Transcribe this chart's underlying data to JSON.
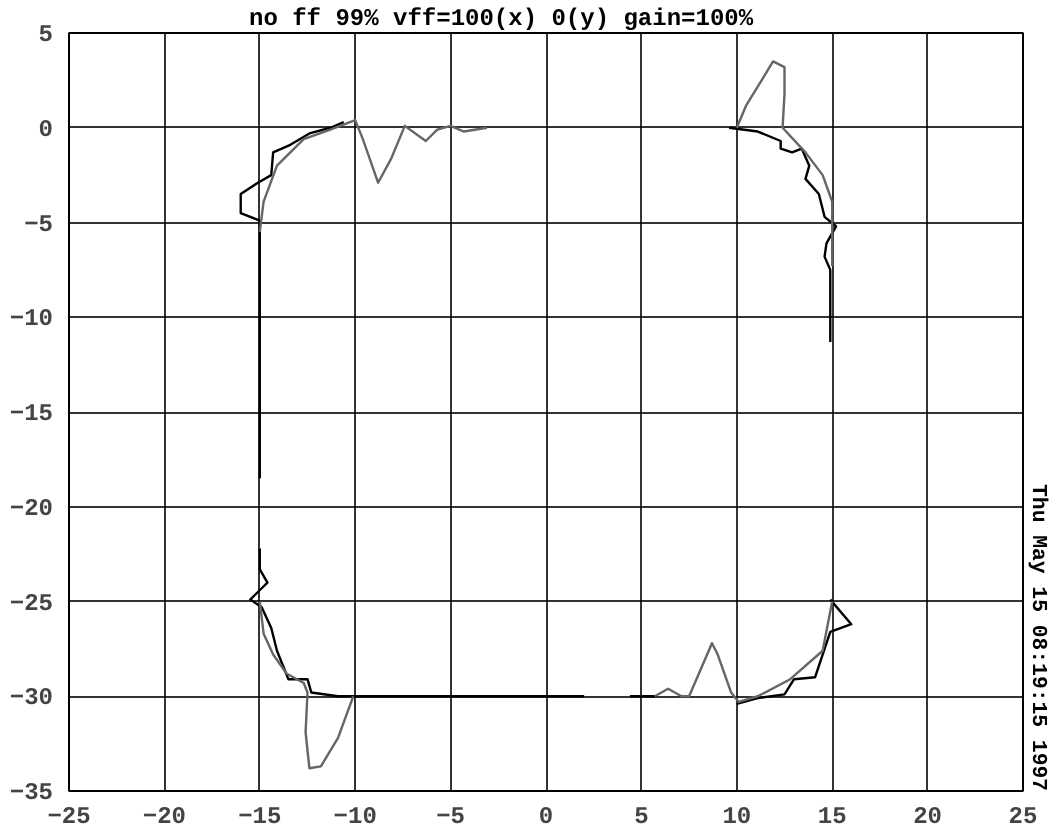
{
  "chart_data": {
    "type": "line",
    "title": "no ff 99% vff=100(x) 0(y) gain=100%",
    "annotations": [
      "Thu May 15 08:19:15 1997"
    ],
    "xlim": [
      -25,
      25
    ],
    "xticks": [
      -25,
      -20,
      -15,
      -10,
      -5,
      0,
      5,
      10,
      15,
      20,
      25
    ],
    "ylim": [
      -35,
      5
    ],
    "yticks": [
      -35,
      -30,
      -25,
      -20,
      -15,
      -10,
      -5,
      0,
      5
    ],
    "grid": true,
    "marker": "none",
    "line_style": "solid",
    "series": [
      {
        "color": "#000000",
        "x": [
          -15,
          -15,
          -16,
          -16,
          -15.1,
          -14.4,
          -14.3,
          -13.4,
          -12.4,
          -11.3,
          -10.6,
          null,
          9.6,
          11.1,
          12.3,
          12.3,
          12.9,
          13.4,
          13.8,
          13.6,
          14.3,
          14.6,
          15.2,
          14.7,
          14.6,
          14.9,
          14.9,
          null,
          14.9,
          16,
          14.9,
          14.1,
          13,
          12.5,
          11.1,
          10,
          null,
          5.8,
          4.4,
          null,
          2,
          -9.7,
          -10.9,
          -12.3,
          -12.5,
          -13.5,
          -13.7,
          -14.1,
          -14.4,
          -14.9,
          -15.5,
          -14.9,
          -14.6,
          -15,
          -15,
          null,
          -15,
          -15
        ],
        "values": [
          -18.5,
          -4.9,
          -4.5,
          -3.5,
          -2.9,
          -2.5,
          -1.3,
          -0.9,
          -0.3,
          0,
          0.3,
          null,
          0,
          -0.2,
          -0.7,
          -1.1,
          -1.3,
          -1.1,
          -2,
          -2.7,
          -3.5,
          -4.7,
          -5.2,
          -6.1,
          -6.8,
          -7.5,
          -11.3,
          null,
          -24.9,
          -26.2,
          -26.6,
          -29,
          -29.1,
          -29.9,
          -30.1,
          -30.4,
          null,
          -30,
          -30,
          null,
          -30,
          -30,
          -30,
          -29.8,
          -29.1,
          -29.1,
          -28.6,
          -27.6,
          -26.4,
          -25.3,
          -24.9,
          -24.3,
          -24,
          -23.3,
          -22.2,
          null,
          -18.5,
          -5
        ]
      },
      {
        "color": "#666666",
        "x": [
          -15,
          -14.8,
          -14.1,
          -12.7,
          -11.3,
          -10,
          -9.6,
          -8.8,
          -8.1,
          -7.4,
          -6.3,
          -5.7,
          -5,
          -4.3,
          -3.1,
          null,
          10,
          10.5,
          11.3,
          11.9,
          12.5,
          12.5,
          12.4,
          13.6,
          14.5,
          15,
          15,
          15,
          null,
          15,
          14.5,
          12.8,
          11.1,
          10.1,
          9.7,
          9,
          8.7,
          7.5,
          7.1,
          6.4,
          5.7,
          null,
          -10.1,
          -10.9,
          -11.8,
          -12.4,
          -12.6,
          -12.5,
          -12.7,
          -13.6,
          -14.3,
          -14.8,
          -15
        ],
        "values": [
          -5.5,
          -3.9,
          -2,
          -0.6,
          -0.1,
          0.4,
          -0.6,
          -2.9,
          -1.6,
          0.1,
          -0.7,
          -0.1,
          0.1,
          -0.2,
          0,
          null,
          0,
          1.2,
          2.5,
          3.5,
          3.2,
          1.8,
          0,
          -1.3,
          -2.5,
          -3.9,
          -5,
          -7.3,
          null,
          -25,
          -27.6,
          -29.1,
          -30,
          -30.3,
          -29.8,
          -27.8,
          -27.2,
          -30,
          -30,
          -29.6,
          -30,
          null,
          -30,
          -32.2,
          -33.7,
          -33.8,
          -31.9,
          -29.8,
          -29.3,
          -28.8,
          -27.8,
          -26.7,
          -25
        ]
      }
    ]
  }
}
